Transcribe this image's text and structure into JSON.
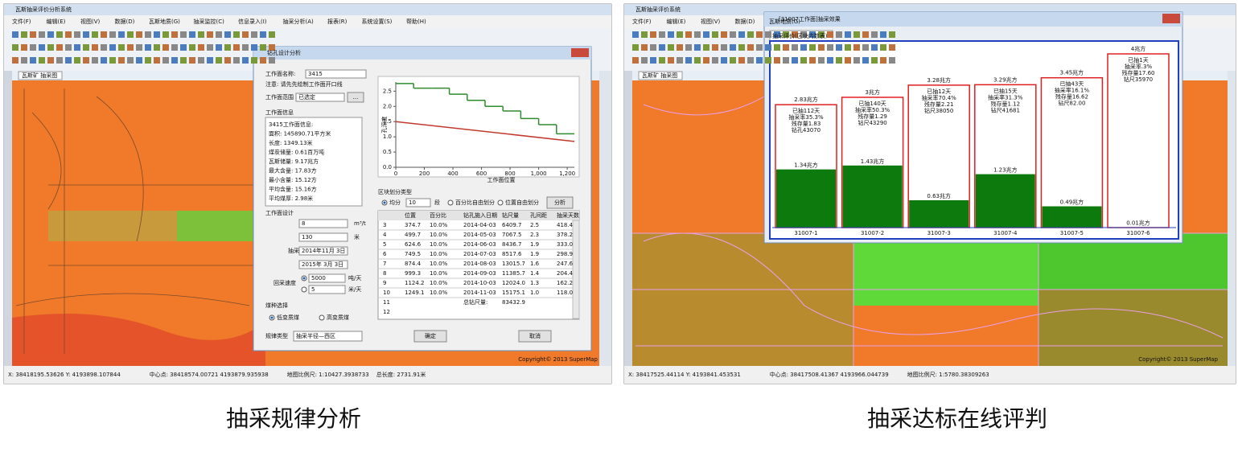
{
  "captions": [
    "抽采规律分析",
    "抽采达标在线评判"
  ],
  "left": {
    "app_title": "瓦斯抽采评价分析系统",
    "menu": [
      "文件(F)",
      "编辑(E)",
      "视图(V)",
      "数据(D)",
      "瓦斯地质(G)",
      "抽采监控(C)",
      "信息录入(I)",
      "抽采分析(A)",
      "报表(R)",
      "系统设置(S)",
      "帮助(H)"
    ],
    "map_tab": "瓦斯矿 抽采图",
    "copyright": "Copyright© 2013 SuperMap",
    "status": [
      "X: 38418195.53626  Y: 4193898.107844",
      "中心点: 38418574.00721  4193879.935938",
      "地图比例尺: 1:10427.3938733",
      "总长度: 2731.91米"
    ],
    "dialog": {
      "title": "钻孔设计分析",
      "face_name_label": "工作面名称:",
      "face_name": "3415",
      "note": "注意: 请先先绘制工作面开口线",
      "range_label": "工作面范围",
      "range_value": "已选定",
      "range_button": "...",
      "info_label": "工作面信息",
      "info_lines": [
        "3415工作面信息:",
        "面积: 145890.71平方米",
        "长度: 1349.13米",
        "煤炭储量: 0.61百万吨",
        "瓦斯储量: 9.17兆方",
        "最大含量: 17.83方",
        "最小含量: 15.12方",
        "平均含量: 15.16方",
        "平均煤厚: 2.98米"
      ],
      "design_label": "工作面设计",
      "design_rows": [
        {
          "label": "达标含量",
          "value": "8",
          "unit": "m³/t"
        },
        {
          "label": "设计孔深",
          "value": "130",
          "unit": "米"
        },
        {
          "label": "抽采完成时间",
          "value": "2014年11月 3日"
        },
        {
          "label": "回采时间",
          "value": "2015年 3月 3日"
        }
      ],
      "speed_label": "回采速度",
      "speed_options": [
        {
          "value": "5000",
          "unit": "吨/天"
        },
        {
          "value": "5",
          "unit": "米/天"
        }
      ],
      "coal_label": "煤种选择",
      "coal_options": [
        "低变质煤",
        "高变质煤"
      ],
      "rule_label": "规律类型",
      "rule_value": "抽采半径—西区",
      "split_label": "区块划分类型",
      "split_even": "均分",
      "split_count": "10",
      "split_unit": "段",
      "split_options": [
        "百分比自由划分",
        "位置自由划分"
      ],
      "analyze_button": "分析",
      "table": {
        "headers": [
          "位置",
          "百分比",
          "钻孔施入日期",
          "钻尺量",
          "孔间距",
          "抽采天数"
        ],
        "rows": [
          [
            "3",
            "374.7",
            "10.0%",
            "2014-04-03",
            "6409.7",
            "2.5",
            "418.4"
          ],
          [
            "4",
            "499.7",
            "10.0%",
            "2014-05-03",
            "7067.5",
            "2.3",
            "378.2"
          ],
          [
            "5",
            "624.6",
            "10.0%",
            "2014-06-03",
            "8436.7",
            "1.9",
            "333.0"
          ],
          [
            "6",
            "749.5",
            "10.0%",
            "2014-07-03",
            "8517.6",
            "1.9",
            "298.9"
          ],
          [
            "7",
            "874.4",
            "10.0%",
            "2014-08-03",
            "13015.7",
            "1.6",
            "247.6"
          ],
          [
            "8",
            "999.3",
            "10.0%",
            "2014-09-03",
            "11385.7",
            "1.4",
            "204.4"
          ],
          [
            "9",
            "1124.2",
            "10.0%",
            "2014-10-03",
            "12024.0",
            "1.3",
            "162.2"
          ],
          [
            "10",
            "1249.1",
            "10.0%",
            "2014-11-03",
            "15175.1",
            "1.0",
            "118.0"
          ]
        ],
        "total": {
          "row": "11",
          "label": "总钻尺量:",
          "value": "83432.9"
        },
        "blank_row": "12"
      },
      "ok_button": "确定",
      "cancel_button": "取消",
      "chart": {
        "type": "line",
        "xlabel": "工作面位置",
        "ylabel": "孔深度",
        "xlim": [
          0,
          1250
        ],
        "ylim": [
          0,
          2.8
        ],
        "xticks": [
          0,
          200,
          400,
          600,
          800,
          {
            "value": 1000,
            "label": "1,000"
          },
          {
            "value": 1200,
            "label": "1,200"
          }
        ],
        "yticks": [
          {
            "value": 0,
            "label": "0.0"
          },
          0.5,
          {
            "value": 1,
            "label": "1.0"
          },
          1.5,
          {
            "value": 2,
            "label": "2.0"
          },
          2.5
        ],
        "green": {
          "color": "#2e8b2e",
          "edges": [
            0,
            125,
            250,
            375,
            500,
            625,
            750,
            875,
            1000,
            1125,
            1250
          ],
          "values": [
            2.75,
            2.6,
            2.6,
            2.4,
            2.2,
            2.0,
            1.85,
            1.6,
            1.4,
            1.1
          ]
        },
        "red": {
          "color": "#c0392b",
          "x": [
            0,
            1250
          ],
          "values": [
            1.5,
            0.85
          ]
        }
      }
    }
  },
  "right": {
    "app_title": "瓦斯抽采评价系统",
    "menu": [
      "文件(F)",
      "编辑(E)",
      "视图(V)",
      "数据(D)",
      "瓦斯地质(G)"
    ],
    "map_tab": "瓦斯矿 抽采图",
    "copyright": "Copyright© 2013 SuperMap",
    "status": [
      "X: 38417525.44114  Y: 4193841.453531",
      "中心点: 38417508.41367  4193966.044739",
      "地图比例尺: 1:5780.38309263"
    ],
    "popup": {
      "title": "[31007工作面]抽采效果",
      "tab": "抽采评价(区块内数表)",
      "chart": {
        "type": "bar",
        "categories": [
          "31007-1",
          "31007-2",
          "31007-3",
          "31007-4",
          "31007-5",
          "31007-6"
        ],
        "total": {
          "color": "#e02020",
          "values": [
            2.83,
            3,
            3.28,
            3.29,
            3.45,
            4
          ],
          "value_labels": [
            "2.83兆方",
            "3兆方",
            "3.28兆方",
            "3.29兆方",
            "3.45兆方",
            "4兆方"
          ]
        },
        "remaining": {
          "color": "#0d7a0d",
          "values": [
            1.34,
            1.43,
            0.63,
            1.23,
            0.49,
            0.01
          ],
          "value_labels": [
            "1.34兆方",
            "1.43兆方",
            "0.63兆方",
            "1.23兆方",
            "0.49兆方",
            "0.01兆方"
          ]
        },
        "notes": [
          [
            "已抽112天",
            "抽采率35.3%",
            "残存量1.83",
            "钻孔43070"
          ],
          [
            "已抽140天",
            "抽采率50.3%",
            "残存量1.29",
            "钻尺43290"
          ],
          [
            "已抽12天",
            "抽采率70.4%",
            "残存量2.21",
            "钻尺38050"
          ],
          [
            "已抽15天",
            "抽采率31.3%",
            "残存量1.12",
            "钻尺41681"
          ],
          [
            "已抽43天",
            "抽采率16.1%",
            "残存量16.62",
            "钻尺82.00"
          ],
          [
            "已抽1天",
            "抽采率.3%",
            "残存量17.60",
            "钻尺35970"
          ]
        ]
      }
    }
  }
}
